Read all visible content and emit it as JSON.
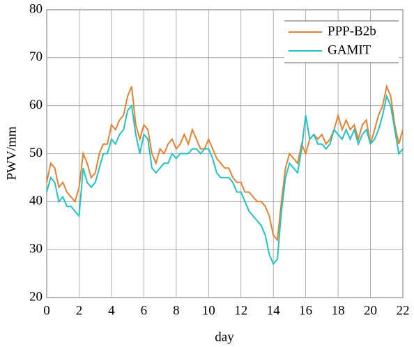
{
  "chart_data": {
    "type": "line",
    "xlabel": "day",
    "ylabel": "PWV/mm",
    "xlim": [
      0,
      22
    ],
    "xticks": [
      0,
      2,
      4,
      6,
      8,
      10,
      12,
      14,
      16,
      18,
      20,
      22
    ],
    "ylim": [
      20,
      80
    ],
    "yticks": [
      20,
      30,
      40,
      50,
      60,
      70,
      80
    ],
    "grid": true,
    "legend": "upper right",
    "x": [
      0,
      0.25,
      0.5,
      0.75,
      1,
      1.25,
      1.5,
      1.75,
      2,
      2.25,
      2.5,
      2.75,
      3,
      3.25,
      3.5,
      3.75,
      4,
      4.25,
      4.5,
      4.75,
      5,
      5.25,
      5.5,
      5.75,
      6,
      6.25,
      6.5,
      6.75,
      7,
      7.25,
      7.5,
      7.75,
      8,
      8.25,
      8.5,
      8.75,
      9,
      9.25,
      9.5,
      9.75,
      10,
      10.25,
      10.5,
      10.75,
      11,
      11.25,
      11.5,
      11.75,
      12,
      12.25,
      12.5,
      12.75,
      13,
      13.25,
      13.5,
      13.75,
      14,
      14.25,
      14.5,
      14.75,
      15,
      15.25,
      15.5,
      15.75,
      16,
      16.25,
      16.5,
      16.75,
      17,
      17.25,
      17.5,
      17.75,
      18,
      18.25,
      18.5,
      18.75,
      19,
      19.25,
      19.5,
      19.75,
      20,
      20.25,
      20.5,
      20.75,
      21,
      21.25,
      21.5,
      21.75,
      22
    ],
    "series": [
      {
        "name": "PPP-B2b",
        "color": "#e8812f",
        "values": [
          44,
          48,
          47,
          43,
          44,
          42,
          41,
          40,
          43,
          50,
          48,
          45,
          46,
          50,
          52,
          52,
          56,
          55,
          57,
          58,
          62,
          64,
          56,
          53,
          56,
          55,
          50,
          48,
          51,
          50,
          52,
          53,
          51,
          52,
          54,
          52,
          55,
          53,
          51,
          51,
          53,
          51,
          49,
          48,
          47,
          47,
          45,
          44,
          44,
          42,
          42,
          41,
          40,
          40,
          39,
          37,
          33,
          32,
          40,
          47,
          50,
          49,
          48,
          52,
          50,
          53,
          54,
          53,
          54,
          52,
          53,
          55,
          58,
          55,
          57,
          55,
          56,
          53,
          56,
          57,
          52,
          55,
          58,
          60,
          64,
          62,
          56,
          52,
          55
        ]
      },
      {
        "name": "GAMIT",
        "color": "#1fc4c4",
        "values": [
          42,
          45,
          44,
          40,
          41,
          39,
          39,
          38,
          37,
          47,
          44,
          43,
          44,
          47,
          50,
          50,
          53,
          52,
          54,
          55,
          59,
          60,
          54,
          50,
          54,
          53,
          47,
          46,
          47,
          48,
          48,
          50,
          49,
          50,
          50,
          50,
          51,
          51,
          50,
          51,
          51,
          49,
          46,
          45,
          45,
          45,
          44,
          42,
          42,
          40,
          38,
          37,
          36,
          35,
          33,
          29,
          27,
          28,
          38,
          45,
          48,
          47,
          46,
          51,
          58,
          53,
          54,
          52,
          52,
          51,
          52,
          55,
          54,
          53,
          55,
          53,
          55,
          52,
          54,
          55,
          52,
          53,
          55,
          58,
          62,
          60,
          55,
          50,
          51
        ]
      }
    ]
  }
}
